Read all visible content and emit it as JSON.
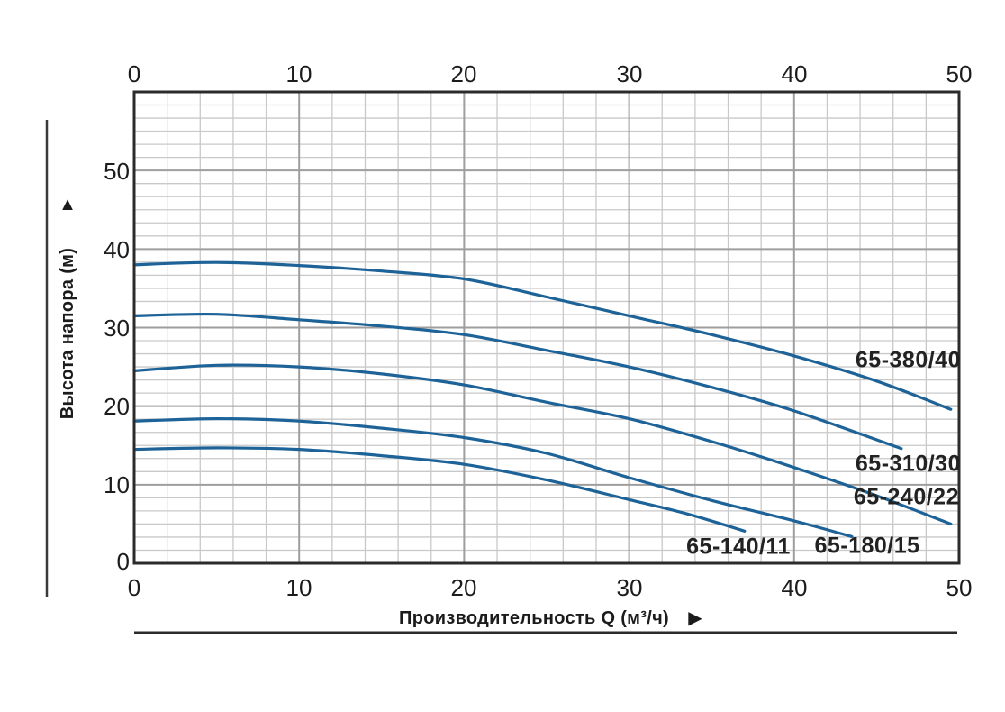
{
  "page": {
    "background": "#ffffff"
  },
  "icons": {
    "y_axis_arrow": "▲",
    "x_axis_arrow": "▶"
  },
  "chart_data": {
    "type": "line",
    "title": "",
    "xlabel": "Производительность Q (м³/ч)",
    "ylabel": "Высота напора (м)",
    "xlim": [
      0,
      50
    ],
    "ylim": [
      0,
      60
    ],
    "x_tick_labels": [
      "0",
      "10",
      "20",
      "30",
      "40",
      "50"
    ],
    "y_tick_labels": [
      "0",
      "10",
      "20",
      "30",
      "40",
      "50"
    ],
    "x_minor_per_major": 5,
    "y_minor_per_major": 6,
    "grid": true,
    "legend_position": "inline-labels-right",
    "line_color": "#1d6398",
    "minor_grid_color": "#c9c9c9",
    "major_grid_color": "#9e9e9e",
    "border_color": "#2b2b2b",
    "decor_line_color": "#3a3a3a",
    "series": [
      {
        "name": "65-380/40",
        "points": [
          [
            0,
            38.0
          ],
          [
            5,
            38.3
          ],
          [
            10,
            37.9
          ],
          [
            15,
            37.2
          ],
          [
            20,
            36.2
          ],
          [
            25,
            33.9
          ],
          [
            30,
            31.5
          ],
          [
            35,
            29.1
          ],
          [
            40,
            26.4
          ],
          [
            45,
            23.2
          ],
          [
            49.5,
            19.6
          ]
        ]
      },
      {
        "name": "65-310/30",
        "points": [
          [
            0,
            31.5
          ],
          [
            5,
            31.7
          ],
          [
            10,
            31.0
          ],
          [
            15,
            30.2
          ],
          [
            20,
            29.1
          ],
          [
            25,
            27.1
          ],
          [
            30,
            25.0
          ],
          [
            35,
            22.4
          ],
          [
            40,
            19.4
          ],
          [
            46.5,
            14.6
          ]
        ]
      },
      {
        "name": "65-240/22",
        "points": [
          [
            0,
            24.5
          ],
          [
            5,
            25.2
          ],
          [
            10,
            25.0
          ],
          [
            15,
            24.1
          ],
          [
            20,
            22.7
          ],
          [
            25,
            20.5
          ],
          [
            30,
            18.4
          ],
          [
            35,
            15.5
          ],
          [
            40,
            12.2
          ],
          [
            45,
            8.6
          ],
          [
            49.5,
            5.0
          ]
        ]
      },
      {
        "name": "65-180/15",
        "points": [
          [
            0,
            18.1
          ],
          [
            5,
            18.4
          ],
          [
            10,
            18.1
          ],
          [
            15,
            17.2
          ],
          [
            20,
            16.0
          ],
          [
            25,
            14.0
          ],
          [
            30,
            10.9
          ],
          [
            35,
            8.0
          ],
          [
            40,
            5.4
          ],
          [
            43.5,
            3.4
          ]
        ]
      },
      {
        "name": "65-140/11",
        "points": [
          [
            0,
            14.5
          ],
          [
            5,
            14.7
          ],
          [
            10,
            14.5
          ],
          [
            15,
            13.7
          ],
          [
            20,
            12.6
          ],
          [
            25,
            10.6
          ],
          [
            30,
            8.1
          ],
          [
            33.5,
            6.3
          ],
          [
            37,
            4.1
          ]
        ]
      }
    ]
  }
}
